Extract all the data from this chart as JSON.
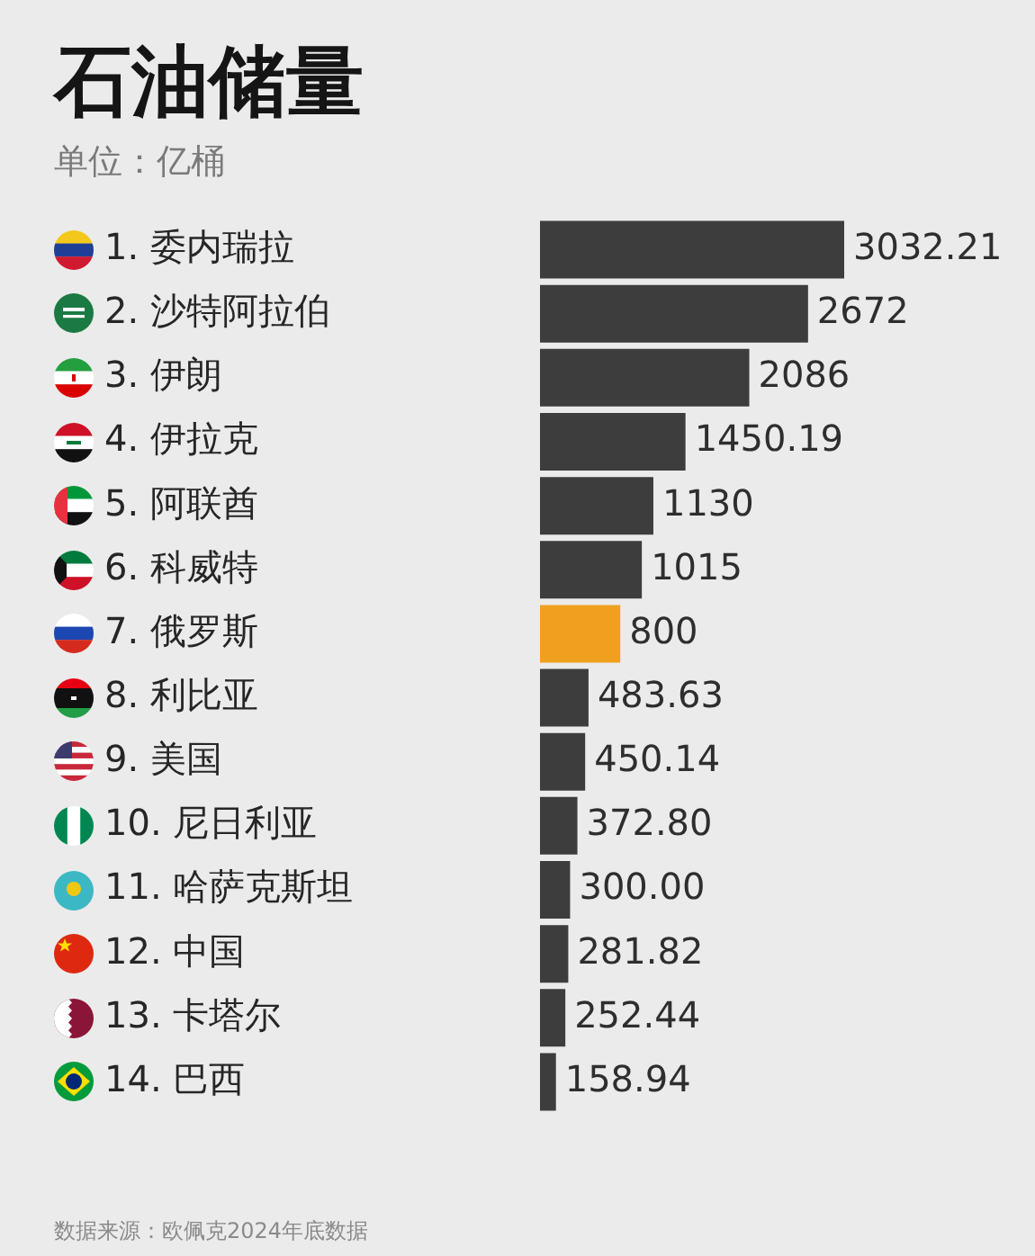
{
  "chart_data": {
    "type": "bar",
    "orientation": "horizontal",
    "title": "石油储量",
    "subtitle": "单位：亿桶",
    "categories": [
      "1. 委内瑞拉",
      "2. 沙特阿拉伯",
      "3. 伊朗",
      "4. 伊拉克",
      "5. 阿联酋",
      "6. 科威特",
      "7. 俄罗斯",
      "8. 利比亚",
      "9. 美国",
      "10. 尼日利亚",
      "11. 哈萨克斯坦",
      "12. 中国",
      "13. 卡塔尔",
      "14. 巴西"
    ],
    "values": [
      3032.21,
      2672,
      2086,
      1450.19,
      1130,
      1015,
      800,
      483.63,
      450.14,
      372.8,
      300,
      281.82,
      252.44,
      158.94
    ],
    "value_labels": [
      "3032.21",
      "2672",
      "2086",
      "1450.19",
      "1130",
      "1015",
      "800",
      "483.63",
      "450.14",
      "372.80",
      "300.00",
      "281.82",
      "252.44",
      "158.94"
    ],
    "colors": [
      "#3d3d3d",
      "#3d3d3d",
      "#3d3d3d",
      "#3d3d3d",
      "#3d3d3d",
      "#3d3d3d",
      "#f0a01e",
      "#3d3d3d",
      "#3d3d3d",
      "#3d3d3d",
      "#3d3d3d",
      "#3d3d3d",
      "#3d3d3d",
      "#3d3d3d"
    ],
    "tick_labels": "y",
    "annotations": [
      "数据来源：欧佩克2024年底数据"
    ]
  }
}
